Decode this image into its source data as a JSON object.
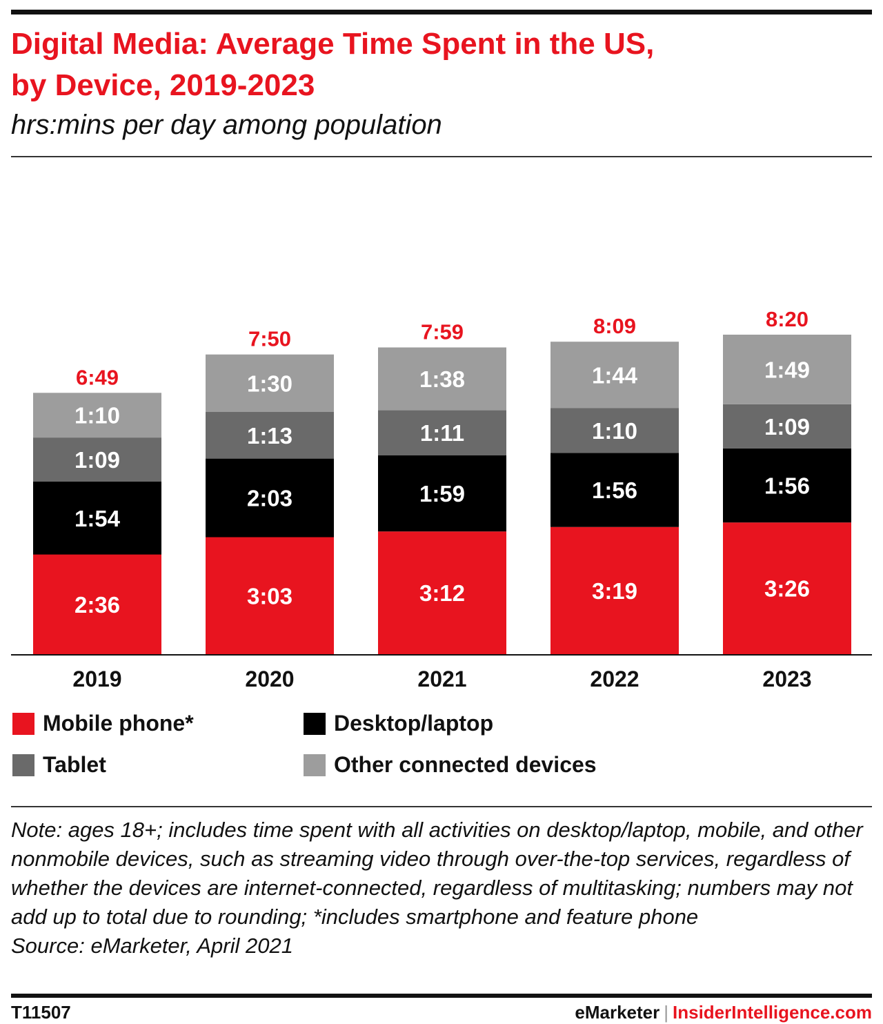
{
  "title_line1": "Digital Media: Average Time Spent in the US,",
  "title_line2": "by Device, 2019-2023",
  "subtitle": "hrs:mins per day among population",
  "colors": {
    "mobile": "#e8141f",
    "desktop": "#000000",
    "tablet": "#6a6a6a",
    "other": "#9d9d9d",
    "total_label": "#e8141f",
    "axis": "#111111"
  },
  "chart_data": {
    "type": "bar",
    "stacked": true,
    "units": "hrs:mins per day",
    "categories": [
      "2019",
      "2020",
      "2021",
      "2022",
      "2023"
    ],
    "series": [
      {
        "name": "Mobile phone*",
        "values": [
          "2:36",
          "3:03",
          "3:12",
          "3:19",
          "3:26"
        ]
      },
      {
        "name": "Desktop/laptop",
        "values": [
          "1:54",
          "2:03",
          "1:59",
          "1:56",
          "1:56"
        ]
      },
      {
        "name": "Tablet",
        "values": [
          "1:09",
          "1:13",
          "1:11",
          "1:10",
          "1:09"
        ]
      },
      {
        "name": "Other connected devices",
        "values": [
          "1:10",
          "1:30",
          "1:38",
          "1:44",
          "1:49"
        ]
      }
    ],
    "totals": [
      "6:49",
      "7:50",
      "7:59",
      "8:09",
      "8:20"
    ]
  },
  "legend": [
    {
      "label": "Mobile phone*",
      "color": "#e8141f"
    },
    {
      "label": "Desktop/laptop",
      "color": "#000000"
    },
    {
      "label": "Tablet",
      "color": "#6a6a6a"
    },
    {
      "label": "Other connected devices",
      "color": "#9d9d9d"
    }
  ],
  "note": "Note: ages 18+; includes time spent with all activities on desktop/laptop, mobile, and other nonmobile devices, such as streaming video through over-the-top services, regardless of whether the devices are internet-connected, regardless of multitasking; numbers may not add up to total due to rounding; *includes smartphone and feature phone",
  "source": "Source: eMarketer, April 2021",
  "footer": {
    "chart_id": "T11507",
    "brand": "eMarketer",
    "separator": "|",
    "site": "InsiderIntelligence.com"
  }
}
